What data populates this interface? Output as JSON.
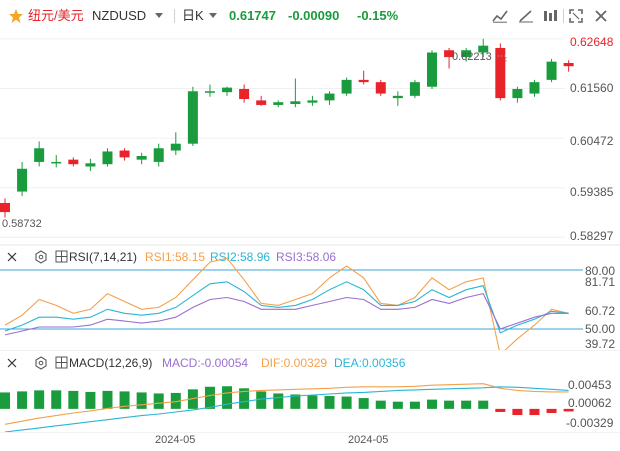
{
  "header": {
    "pair_name": "纽元/美元",
    "symbol": "NZDUSD",
    "interval": "日K",
    "price": "0.61747",
    "change": "-0.00090",
    "change_pct": "-0.15%",
    "star_icon": "star-icon",
    "dropdown_icon": "chevron-down-icon",
    "toolbar_icons": [
      "indicator-icon",
      "draw-tool-icon",
      "settings-icon",
      "fullscreen-icon",
      "close-icon"
    ],
    "colors": {
      "brand": "#f5a623",
      "up": "#1a9c3e",
      "down": "#e8232a"
    }
  },
  "main_panel": {
    "high_label": "0.62213",
    "low_label": "0.58732",
    "price_ticks": [
      "0.62648",
      "0.61560",
      "0.60472",
      "0.59385",
      "0.58297"
    ]
  },
  "rsi_panel": {
    "title": "RSI(7,14,21)",
    "rsi1": "RSI1:58.15",
    "rsi2": "RSI2:58.96",
    "rsi3": "RSI3:58.06",
    "ticks": [
      "80.00",
      "81.71",
      "60.72",
      "50.00",
      "39.72"
    ],
    "colors": {
      "rsi1": "#f5a04a",
      "rsi2": "#29b6d6",
      "rsi3": "#9a6fcf"
    }
  },
  "macd_panel": {
    "title": "MACD(12,26,9)",
    "macd": "MACD:-0.00054",
    "dif": "DIF:0.00329",
    "dea": "DEA:0.00356",
    "ticks": [
      "0.00453",
      "0.00062",
      "-0.00329"
    ],
    "colors": {
      "macd": "#9a6fcf",
      "dif": "#f5a04a",
      "dea": "#29b6d6"
    }
  },
  "time_axis": [
    "2024-05",
    "2024-05"
  ],
  "chart_data": [
    {
      "type": "candlestick",
      "title": "NZDUSD 日K",
      "ylim": [
        0.5815,
        0.628
      ],
      "highest": 0.62213,
      "lowest": 0.58732,
      "candles": [
        {
          "o": 0.5905,
          "h": 0.5915,
          "l": 0.5873,
          "c": 0.5885,
          "up": false
        },
        {
          "o": 0.593,
          "h": 0.5995,
          "l": 0.592,
          "c": 0.598,
          "up": true
        },
        {
          "o": 0.5995,
          "h": 0.604,
          "l": 0.5985,
          "c": 0.6025,
          "up": true
        },
        {
          "o": 0.5992,
          "h": 0.601,
          "l": 0.5983,
          "c": 0.5995,
          "up": true
        },
        {
          "o": 0.6,
          "h": 0.6005,
          "l": 0.5985,
          "c": 0.599,
          "up": false
        },
        {
          "o": 0.5985,
          "h": 0.6002,
          "l": 0.5975,
          "c": 0.5992,
          "up": true
        },
        {
          "o": 0.599,
          "h": 0.6025,
          "l": 0.5985,
          "c": 0.6018,
          "up": true
        },
        {
          "o": 0.602,
          "h": 0.6025,
          "l": 0.5998,
          "c": 0.6005,
          "up": false
        },
        {
          "o": 0.6,
          "h": 0.6015,
          "l": 0.599,
          "c": 0.6008,
          "up": true
        },
        {
          "o": 0.5995,
          "h": 0.6035,
          "l": 0.5985,
          "c": 0.6025,
          "up": true
        },
        {
          "o": 0.602,
          "h": 0.606,
          "l": 0.601,
          "c": 0.6035,
          "up": true
        },
        {
          "o": 0.6035,
          "h": 0.616,
          "l": 0.603,
          "c": 0.615,
          "up": true
        },
        {
          "o": 0.6148,
          "h": 0.6165,
          "l": 0.6138,
          "c": 0.615,
          "up": true
        },
        {
          "o": 0.6148,
          "h": 0.616,
          "l": 0.614,
          "c": 0.6158,
          "up": true
        },
        {
          "o": 0.6155,
          "h": 0.6165,
          "l": 0.6125,
          "c": 0.6133,
          "up": false
        },
        {
          "o": 0.613,
          "h": 0.614,
          "l": 0.6118,
          "c": 0.612,
          "up": false
        },
        {
          "o": 0.612,
          "h": 0.613,
          "l": 0.6115,
          "c": 0.6126,
          "up": true
        },
        {
          "o": 0.6122,
          "h": 0.6178,
          "l": 0.6115,
          "c": 0.6128,
          "up": true
        },
        {
          "o": 0.6125,
          "h": 0.614,
          "l": 0.6118,
          "c": 0.613,
          "up": true
        },
        {
          "o": 0.613,
          "h": 0.615,
          "l": 0.612,
          "c": 0.6145,
          "up": true
        },
        {
          "o": 0.6145,
          "h": 0.618,
          "l": 0.614,
          "c": 0.6175,
          "up": true
        },
        {
          "o": 0.6175,
          "h": 0.6195,
          "l": 0.6165,
          "c": 0.617,
          "up": false
        },
        {
          "o": 0.617,
          "h": 0.6175,
          "l": 0.614,
          "c": 0.6145,
          "up": false
        },
        {
          "o": 0.6135,
          "h": 0.615,
          "l": 0.6118,
          "c": 0.614,
          "up": true
        },
        {
          "o": 0.614,
          "h": 0.6175,
          "l": 0.6135,
          "c": 0.617,
          "up": true
        },
        {
          "o": 0.616,
          "h": 0.624,
          "l": 0.6155,
          "c": 0.6235,
          "up": true
        },
        {
          "o": 0.624,
          "h": 0.6245,
          "l": 0.62,
          "c": 0.6225,
          "up": false
        },
        {
          "o": 0.6225,
          "h": 0.6245,
          "l": 0.6215,
          "c": 0.624,
          "up": true
        },
        {
          "o": 0.6235,
          "h": 0.6265,
          "l": 0.6225,
          "c": 0.625,
          "up": true
        },
        {
          "o": 0.6245,
          "h": 0.6255,
          "l": 0.613,
          "c": 0.6135,
          "up": false
        },
        {
          "o": 0.6135,
          "h": 0.616,
          "l": 0.6125,
          "c": 0.6155,
          "up": true
        },
        {
          "o": 0.6145,
          "h": 0.6175,
          "l": 0.6138,
          "c": 0.617,
          "up": true
        },
        {
          "o": 0.6175,
          "h": 0.6221,
          "l": 0.617,
          "c": 0.6215,
          "up": true
        },
        {
          "o": 0.6212,
          "h": 0.6218,
          "l": 0.6193,
          "c": 0.6205,
          "up": false
        }
      ]
    },
    {
      "type": "line",
      "title": "RSI(7,14,21)",
      "ylim": [
        35,
        85
      ],
      "reference_lines": [
        80.0,
        50.0
      ],
      "series": [
        {
          "name": "RSI1",
          "values": [
            52,
            57,
            65,
            62,
            58,
            60,
            68,
            64,
            60,
            61,
            66,
            75,
            84,
            86,
            75,
            63,
            62,
            65,
            68,
            76,
            82,
            76,
            63,
            62,
            66,
            76,
            70,
            74,
            76,
            37,
            45,
            52,
            60,
            58
          ]
        },
        {
          "name": "RSI2",
          "values": [
            49,
            52,
            56,
            56,
            55,
            56,
            60,
            58,
            57,
            58,
            61,
            67,
            73,
            74,
            69,
            62,
            61,
            62,
            65,
            70,
            74,
            70,
            62,
            62,
            64,
            70,
            66,
            70,
            72,
            48,
            52,
            55,
            59,
            58
          ]
        },
        {
          "name": "RSI3",
          "values": [
            47,
            49,
            51,
            51,
            51,
            52,
            55,
            54,
            53,
            54,
            56,
            61,
            65,
            66,
            64,
            60,
            60,
            60,
            62,
            64,
            66,
            65,
            60,
            60,
            61,
            65,
            63,
            66,
            68,
            50,
            53,
            56,
            58,
            58
          ]
        }
      ]
    },
    {
      "type": "bar",
      "title": "MACD(12,26,9)",
      "ylim": [
        -0.0045,
        0.0062
      ],
      "series": [
        {
          "name": "MACD",
          "values": [
            0.0032,
            0.0034,
            0.0036,
            0.0036,
            0.0035,
            0.0033,
            0.0035,
            0.0034,
            0.0032,
            0.003,
            0.0031,
            0.0038,
            0.0043,
            0.0044,
            0.004,
            0.0034,
            0.003,
            0.0028,
            0.0026,
            0.0025,
            0.0024,
            0.0021,
            0.0016,
            0.0014,
            0.0014,
            0.0018,
            0.0016,
            0.0016,
            0.0016,
            -0.0006,
            -0.0012,
            -0.0012,
            -0.0008,
            -0.0005
          ]
        },
        {
          "name": "DIF",
          "values": [
            -0.003,
            -0.0024,
            -0.0018,
            -0.0013,
            -0.0008,
            -0.0004,
            0.0001,
            0.0005,
            0.0008,
            0.0011,
            0.0014,
            0.002,
            0.0026,
            0.0031,
            0.0034,
            0.0036,
            0.0037,
            0.0038,
            0.0039,
            0.004,
            0.0042,
            0.0043,
            0.0043,
            0.0043,
            0.0044,
            0.0046,
            0.0047,
            0.0048,
            0.0049,
            0.004,
            0.0036,
            0.0034,
            0.0033,
            0.0033
          ]
        },
        {
          "name": "DEA",
          "values": [
            -0.0045,
            -0.0041,
            -0.0037,
            -0.0033,
            -0.0029,
            -0.0025,
            -0.0021,
            -0.0017,
            -0.0013,
            -0.001,
            -0.0006,
            -0.0002,
            0.0003,
            0.0009,
            0.0014,
            0.0019,
            0.0022,
            0.0025,
            0.0027,
            0.0029,
            0.0031,
            0.0032,
            0.0034,
            0.0036,
            0.0037,
            0.0038,
            0.0039,
            0.004,
            0.0041,
            0.0043,
            0.0042,
            0.004,
            0.0038,
            0.0036
          ]
        }
      ]
    }
  ]
}
